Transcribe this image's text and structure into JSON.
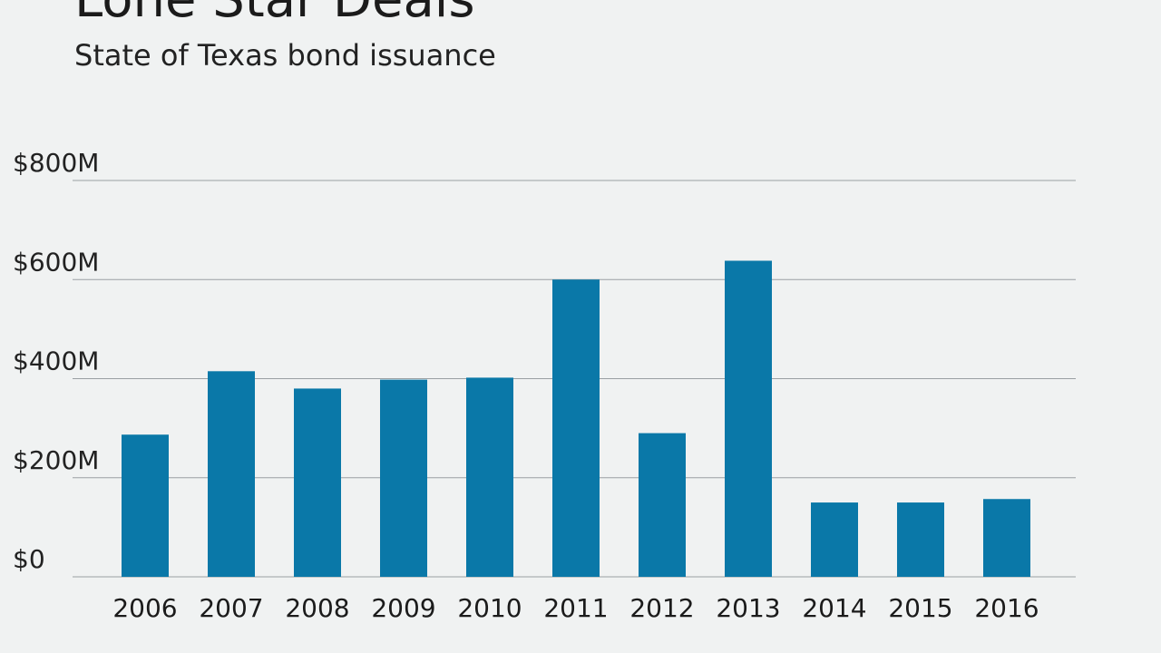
{
  "header": {
    "title": "Lone Star Deals",
    "subtitle": "State of Texas bond issuance"
  },
  "colors": {
    "background": "#f0f2f2",
    "bar": "#0a78a8",
    "grid": "#9aa0a3"
  },
  "chart_data": {
    "type": "bar",
    "title": "Lone Star Deals",
    "subtitle": "State of Texas bond issuance",
    "categories": [
      "2006",
      "2007",
      "2008",
      "2009",
      "2010",
      "2011",
      "2012",
      "2013",
      "2014",
      "2015",
      "2016"
    ],
    "values": [
      287,
      415,
      380,
      398,
      402,
      600,
      290,
      638,
      150,
      150,
      157
    ],
    "value_units": "millions of dollars",
    "y_tick_values": [
      0,
      200,
      400,
      600,
      800
    ],
    "y_tick_labels": [
      "$0",
      "$200M",
      "$400M",
      "$600M",
      "$800M"
    ],
    "ylim": [
      0,
      800
    ],
    "xlabel": "",
    "ylabel": "",
    "grid": true,
    "legend": "none"
  }
}
